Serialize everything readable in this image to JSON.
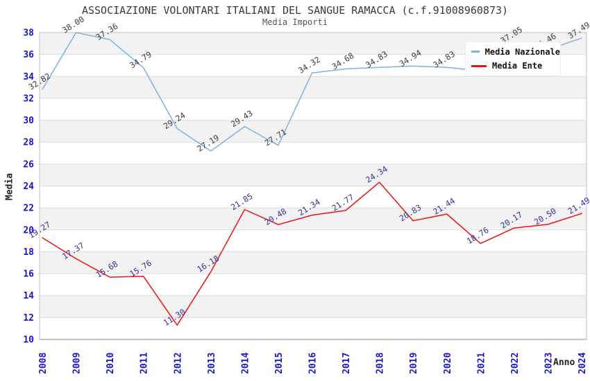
{
  "title": "ASSOCIAZIONE VOLONTARI ITALIANI DEL SANGUE RAMACCA (c.f.91008960873)",
  "subtitle": "Media Importi",
  "y_axis": {
    "label": "Media",
    "ticks": [
      10,
      12,
      14,
      16,
      18,
      20,
      22,
      24,
      26,
      28,
      30,
      32,
      34,
      36,
      38
    ],
    "tick_color": "#1414cc"
  },
  "x_axis": {
    "label": "Anno",
    "tick_color": "#1414cc"
  },
  "legend": {
    "position": "top-right",
    "items": [
      {
        "label": "Media Nazionale",
        "color": "#7ab1e8"
      },
      {
        "label": "Media Ente",
        "color": "#ee1111"
      }
    ]
  },
  "chart_data": {
    "type": "line",
    "title": "ASSOCIAZIONE VOLONTARI ITALIANI DEL SANGUE RAMACCA (c.f.91008960873)",
    "subtitle": "Media Importi",
    "xlabel": "Anno",
    "ylabel": "Media",
    "ylim": [
      10,
      38
    ],
    "grid": {
      "band_color": "#f2f2f2",
      "line_color": "#dcdcdc",
      "border_color": "#c0c0c0"
    },
    "categories": [
      "2008",
      "2009",
      "2010",
      "2011",
      "2012",
      "2013",
      "2014",
      "2015",
      "2016",
      "2017",
      "2018",
      "2019",
      "2020",
      "2021",
      "2022",
      "2023",
      "2024"
    ],
    "series": [
      {
        "name": "Media Nazionale",
        "color": "#7ab1e8",
        "label_color": "#3c3c3c",
        "values": [
          32.82,
          38.0,
          37.36,
          34.79,
          29.24,
          27.19,
          29.43,
          27.71,
          34.32,
          34.68,
          34.83,
          34.94,
          34.83,
          34.5,
          37.05,
          36.46,
          37.49
        ],
        "labels": [
          "32.82",
          "38.00",
          "37.36",
          "34.79",
          "29.24",
          "27.19",
          "29.43",
          "27.71",
          "34.32",
          "34.68",
          "34.83",
          "34.94",
          "34.83",
          "",
          "37.05",
          "36.46",
          "37.49"
        ]
      },
      {
        "name": "Media Ente",
        "color": "#ee1111",
        "label_color": "#333399",
        "values": [
          19.27,
          17.37,
          15.68,
          15.76,
          11.3,
          16.18,
          21.85,
          20.48,
          21.34,
          21.77,
          24.34,
          20.83,
          21.44,
          18.76,
          20.17,
          20.5,
          21.49
        ],
        "labels": [
          "19.27",
          "17.37",
          "15.68",
          "15.76",
          "11.30",
          "16.18",
          "21.85",
          "20.48",
          "21.34",
          "21.77",
          "24.34",
          "20.83",
          "21.44",
          "18.76",
          "20.17",
          "20.50",
          "21.49"
        ]
      }
    ]
  }
}
